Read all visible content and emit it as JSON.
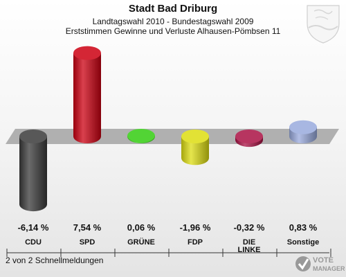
{
  "header": {
    "title": "Stadt Bad Driburg",
    "subtitle1": "Landtagswahl 2010 - Bundestagswahl 2009",
    "subtitle2": "Erststimmen Gewinne und Verluste Alhausen-Pömbsen 11"
  },
  "footer": {
    "text": "2 von 2 Schnellmeldungen"
  },
  "logo": {
    "line1": "VOTE",
    "line2": "MANAGER"
  },
  "chart_data": {
    "type": "bar",
    "categories": [
      "CDU",
      "SPD",
      "GRÜNE",
      "FDP",
      "DIE LINKE",
      "Sonstige"
    ],
    "category_lines": [
      [
        "CDU"
      ],
      [
        "SPD"
      ],
      [
        "GRÜNE"
      ],
      [
        "FDP"
      ],
      [
        "DIE",
        "LINKE"
      ],
      [
        "Sonstige"
      ]
    ],
    "values": [
      -6.14,
      7.54,
      0.06,
      -1.96,
      -0.32,
      0.83
    ],
    "value_labels": [
      "-6,14 %",
      "7,54 %",
      "0,06 %",
      "-1,96 %",
      "-0,32 %",
      "0,83 %"
    ],
    "colors": [
      "#3a3a3a",
      "#cc0011",
      "#33cc11",
      "#dddd11",
      "#aa1144",
      "#99aadd"
    ],
    "ylim": [
      -7.2,
      8.3
    ],
    "baseline": 0,
    "grid": false,
    "legend": "none"
  }
}
